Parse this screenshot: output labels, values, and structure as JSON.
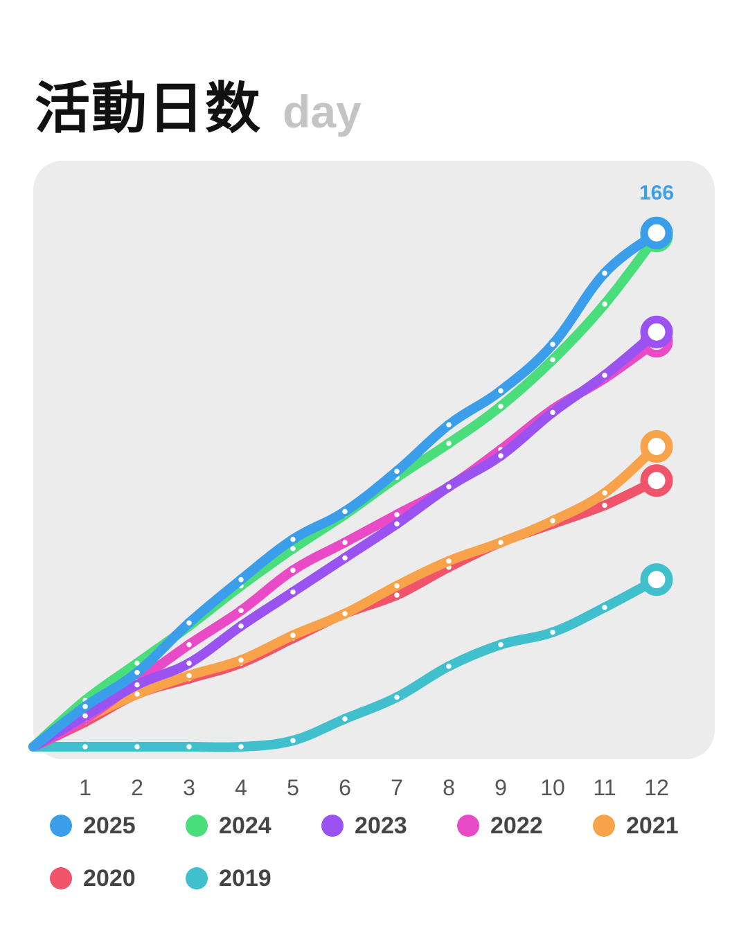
{
  "title": "活動日数",
  "unit": "day",
  "chart_data": {
    "type": "line",
    "title": "活動日数",
    "unit": "day",
    "x": [
      0,
      1,
      2,
      3,
      4,
      5,
      6,
      7,
      8,
      9,
      10,
      11,
      12
    ],
    "x_tick_labels": [
      "1",
      "2",
      "3",
      "4",
      "5",
      "6",
      "7",
      "8",
      "9",
      "10",
      "11",
      "12"
    ],
    "ylim": [
      0,
      175
    ],
    "end_label": {
      "series": "2025",
      "value": "166"
    },
    "legend_position": "bottom",
    "series": [
      {
        "name": "2019",
        "color": "#3fc0cc",
        "values": [
          0,
          0,
          0,
          0,
          0,
          2,
          9,
          16,
          26,
          33,
          37,
          45,
          54
        ]
      },
      {
        "name": "2020",
        "color": "#f0546b",
        "values": [
          0,
          8,
          17,
          22,
          27,
          35,
          43,
          49,
          58,
          66,
          72,
          78,
          86
        ]
      },
      {
        "name": "2021",
        "color": "#f8a24a",
        "values": [
          0,
          9,
          17,
          23,
          28,
          36,
          43,
          52,
          60,
          66,
          73,
          82,
          97
        ]
      },
      {
        "name": "2022",
        "color": "#e94bc6",
        "values": [
          0,
          9,
          21,
          33,
          44,
          57,
          66,
          75,
          84,
          96,
          109,
          119,
          131
        ]
      },
      {
        "name": "2023",
        "color": "#9a52f0",
        "values": [
          0,
          10,
          20,
          27,
          39,
          50,
          61,
          72,
          84,
          94,
          108,
          120,
          134
        ]
      },
      {
        "name": "2024",
        "color": "#49de7b",
        "values": [
          0,
          15,
          27,
          39,
          52,
          64,
          75,
          87,
          98,
          110,
          125,
          143,
          165
        ]
      },
      {
        "name": "2025",
        "color": "#3a9eea",
        "values": [
          0,
          13,
          24,
          40,
          54,
          67,
          76,
          89,
          104,
          115,
          130,
          153,
          166
        ]
      }
    ]
  },
  "legend": [
    {
      "label": "2025",
      "color": "#3a9eea"
    },
    {
      "label": "2024",
      "color": "#49de7b"
    },
    {
      "label": "2023",
      "color": "#9a52f0"
    },
    {
      "label": "2022",
      "color": "#e94bc6"
    },
    {
      "label": "2021",
      "color": "#f8a24a"
    },
    {
      "label": "2020",
      "color": "#f0546b"
    },
    {
      "label": "2019",
      "color": "#3fc0cc"
    }
  ]
}
